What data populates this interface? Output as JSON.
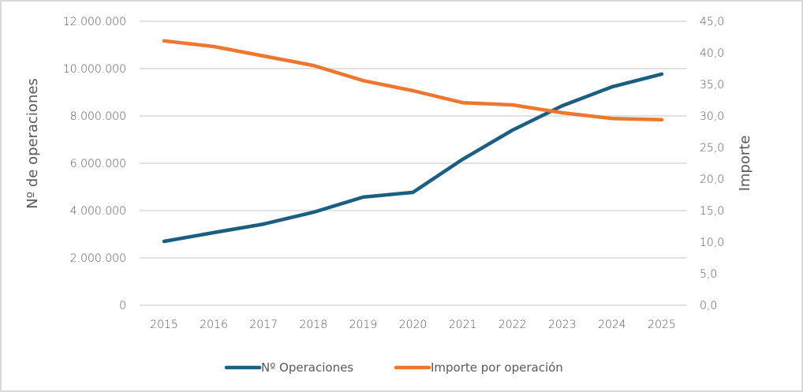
{
  "chart_data": {
    "type": "line",
    "title": "",
    "categories": [
      "2015",
      "2016",
      "2017",
      "2018",
      "2019",
      "2020",
      "2021",
      "2022",
      "2023",
      "2024",
      "2025"
    ],
    "series": [
      {
        "name": "Nº Operaciones",
        "axis": "left",
        "color": "#1a5f80",
        "values": [
          2700000,
          3070000,
          3430000,
          3930000,
          4570000,
          4770000,
          6170000,
          7400000,
          8430000,
          9230000,
          9770000
        ]
      },
      {
        "name": "Importe por operación",
        "axis": "right",
        "color": "#ed7731",
        "values": [
          41.9,
          41.0,
          39.5,
          38.0,
          35.6,
          34.0,
          32.1,
          31.75,
          30.5,
          29.6,
          29.4
        ]
      }
    ],
    "ylabel": "Nº de operaciones",
    "y2label": "Importe",
    "ylim": [
      0,
      12000000
    ],
    "y2lim": [
      0,
      45
    ],
    "yticks": [
      "0",
      "2.000.000",
      "4.000.000",
      "6.000.000",
      "8.000.000",
      "10.000.000",
      "12.000.000"
    ],
    "y2ticks": [
      "0,0",
      "5,0",
      "10,0",
      "15,0",
      "20,0",
      "25,0",
      "30,0",
      "35,0",
      "40,0",
      "45,0"
    ],
    "grid": true,
    "legend": "bottom"
  }
}
